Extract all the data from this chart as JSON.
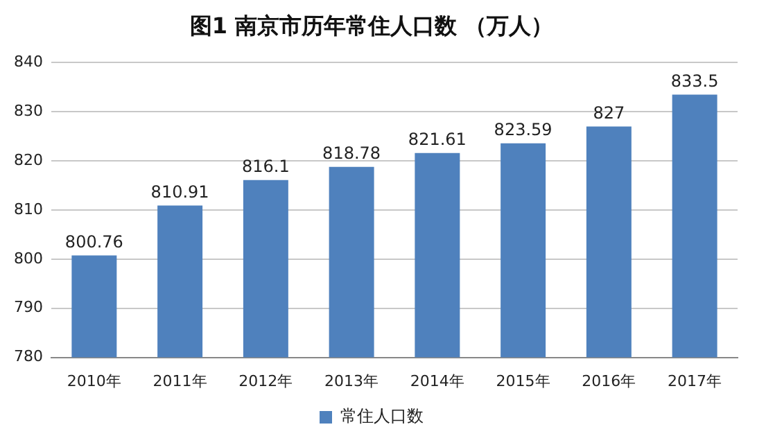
{
  "chart_data": {
    "type": "bar",
    "title": "图1 南京市历年常住人口数 （万人）",
    "categories": [
      "2010年",
      "2011年",
      "2012年",
      "2013年",
      "2014年",
      "2015年",
      "2016年",
      "2017年"
    ],
    "series": [
      {
        "name": "常住人口数",
        "color": "#4f81bd",
        "values": [
          800.76,
          810.91,
          816.1,
          818.78,
          821.61,
          823.59,
          827,
          833.5
        ]
      }
    ],
    "ylim": [
      780,
      840
    ],
    "yticks": [
      780,
      790,
      800,
      810,
      820,
      830,
      840
    ],
    "grid": "y",
    "legend": "bottom",
    "data_labels": true
  }
}
